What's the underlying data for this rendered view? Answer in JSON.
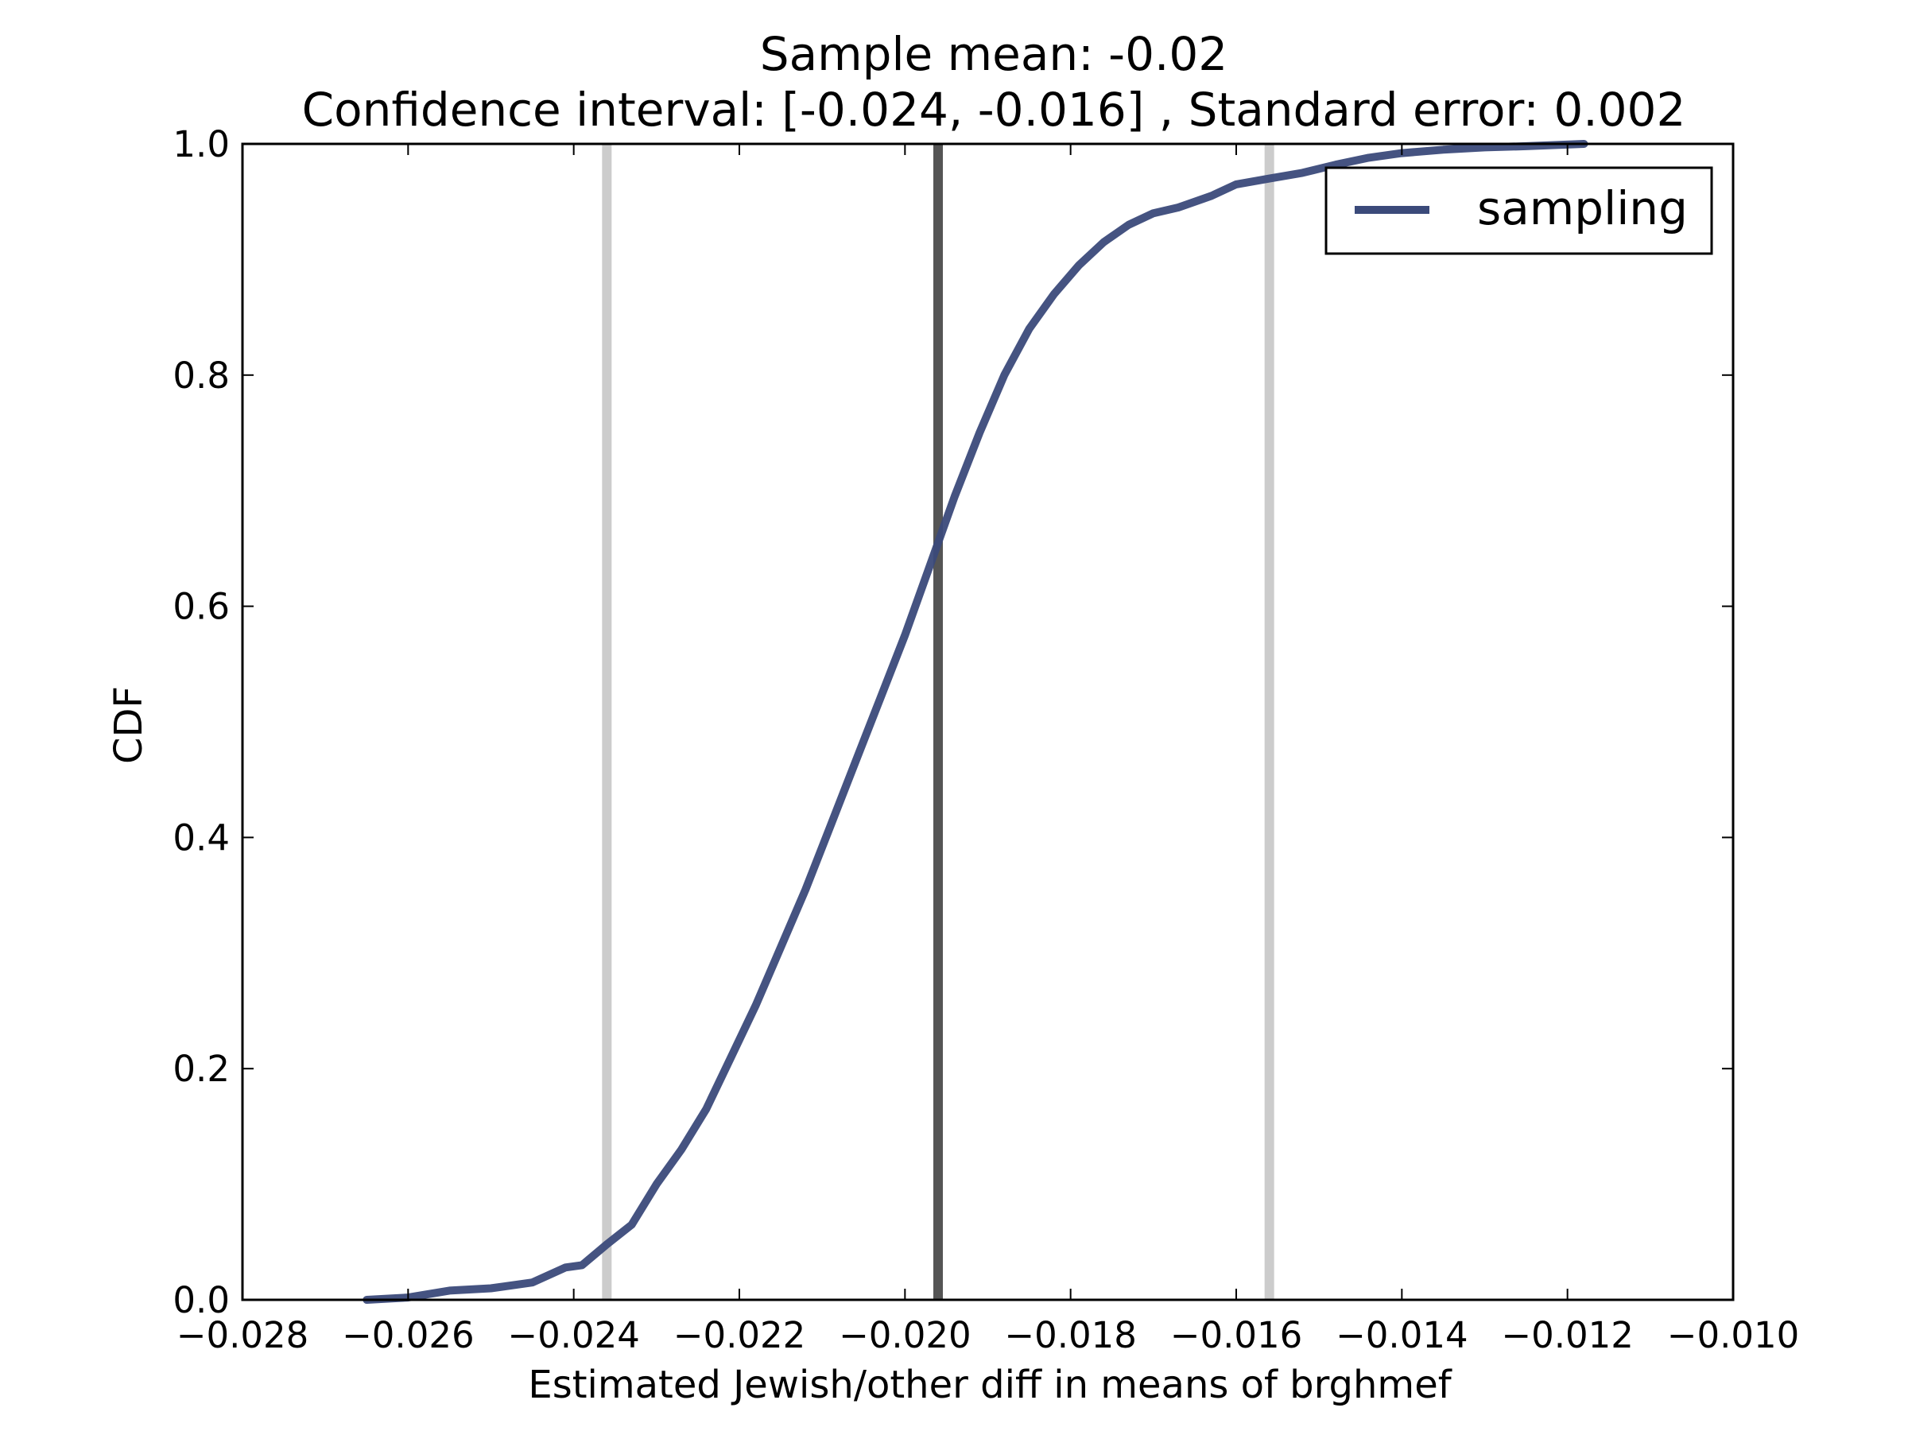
{
  "chart_data": {
    "type": "line",
    "title_line1": "Sample mean: -0.02",
    "title_line2": "Confidence interval: [-0.024, -0.016] , Standard error: 0.002",
    "xlabel": "Estimated Jewish/other diff in means of brghmef",
    "ylabel": "CDF",
    "xlim": [
      -0.028,
      -0.01
    ],
    "ylim": [
      0.0,
      1.0
    ],
    "x_ticks": [
      -0.028,
      -0.026,
      -0.024,
      -0.022,
      -0.02,
      -0.018,
      -0.016,
      -0.014,
      -0.012,
      -0.01
    ],
    "x_tick_labels": [
      "−0.028",
      "−0.026",
      "−0.024",
      "−0.022",
      "−0.020",
      "−0.018",
      "−0.016",
      "−0.014",
      "−0.012",
      "−0.010"
    ],
    "y_ticks": [
      0.0,
      0.2,
      0.4,
      0.6,
      0.8,
      1.0
    ],
    "y_tick_labels": [
      "0.0",
      "0.2",
      "0.4",
      "0.6",
      "0.8",
      "1.0"
    ],
    "grid": false,
    "legend_position": "top-right",
    "series": [
      {
        "name": "sampling",
        "color": "#3b4a7a",
        "x": [
          -0.0265,
          -0.026,
          -0.0255,
          -0.025,
          -0.0245,
          -0.0241,
          -0.0239,
          -0.0236,
          -0.0233,
          -0.023,
          -0.0227,
          -0.0224,
          -0.0221,
          -0.0218,
          -0.0215,
          -0.0212,
          -0.0209,
          -0.0206,
          -0.0203,
          -0.02,
          -0.0197,
          -0.0194,
          -0.0191,
          -0.0188,
          -0.0185,
          -0.0182,
          -0.0179,
          -0.0176,
          -0.0173,
          -0.017,
          -0.0167,
          -0.0163,
          -0.016,
          -0.0156,
          -0.0152,
          -0.0148,
          -0.0144,
          -0.014,
          -0.0135,
          -0.013,
          -0.0125,
          -0.0118
        ],
        "y": [
          0.0,
          0.002,
          0.008,
          0.01,
          0.015,
          0.028,
          0.03,
          0.048,
          0.065,
          0.1,
          0.13,
          0.165,
          0.21,
          0.255,
          0.305,
          0.355,
          0.41,
          0.465,
          0.52,
          0.575,
          0.635,
          0.695,
          0.75,
          0.8,
          0.84,
          0.87,
          0.895,
          0.915,
          0.93,
          0.94,
          0.945,
          0.955,
          0.965,
          0.97,
          0.975,
          0.982,
          0.988,
          0.992,
          0.995,
          0.997,
          0.998,
          1.0
        ]
      }
    ],
    "vlines": [
      {
        "x": -0.0196,
        "color": "#555555",
        "role": "mean"
      },
      {
        "x": -0.0236,
        "color": "#cccccc",
        "role": "ci-low"
      },
      {
        "x": -0.0156,
        "color": "#cccccc",
        "role": "ci-high"
      }
    ]
  }
}
